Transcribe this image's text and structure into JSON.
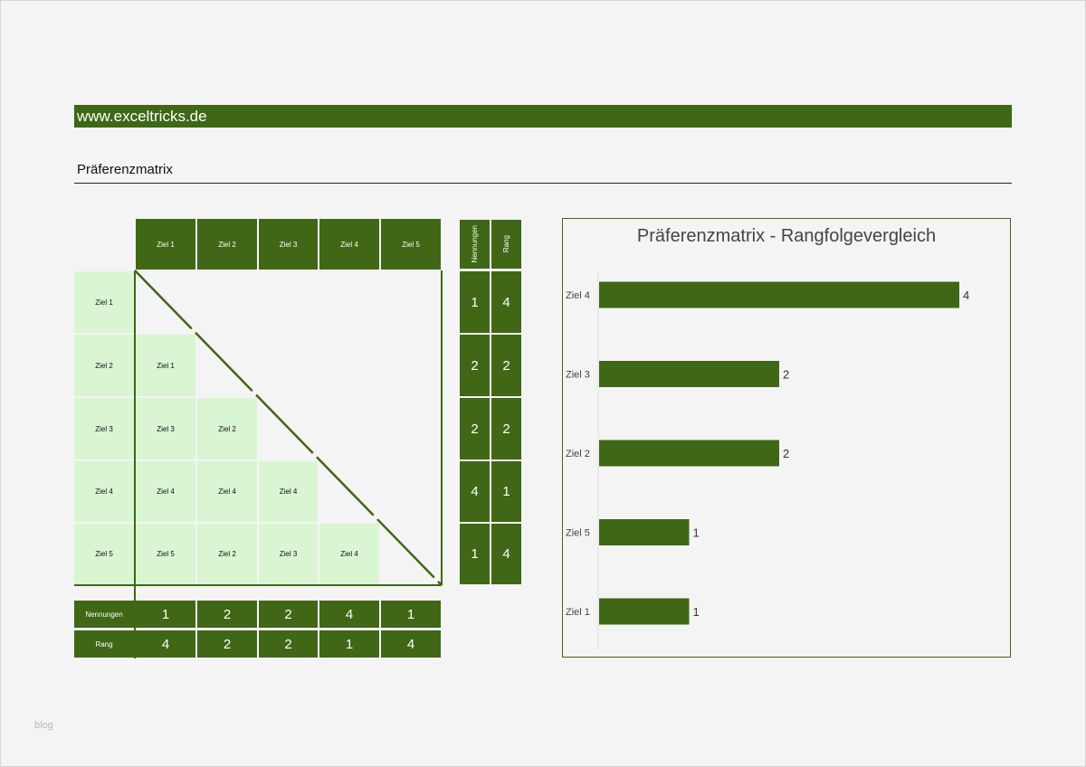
{
  "banner": {
    "text": "www.exceltricks.de"
  },
  "sheet": {
    "title": "Präferenzmatrix"
  },
  "matrix": {
    "col_headers": [
      "Ziel 1",
      "Ziel 2",
      "Ziel 3",
      "Ziel 4",
      "Ziel 5"
    ],
    "row_headers": [
      "Ziel 1",
      "Ziel 2",
      "Ziel 3",
      "Ziel 4",
      "Ziel 5"
    ],
    "cells": [
      [],
      [
        "Ziel 1"
      ],
      [
        "Ziel 3",
        "Ziel 2"
      ],
      [
        "Ziel 4",
        "Ziel 4",
        "Ziel 4"
      ],
      [
        "Ziel 5",
        "Ziel 2",
        "Ziel 3",
        "Ziel 4"
      ]
    ],
    "side_headers": [
      "Nennungen",
      "Rang"
    ],
    "side_values": [
      [
        "1",
        "4"
      ],
      [
        "2",
        "2"
      ],
      [
        "2",
        "2"
      ],
      [
        "4",
        "1"
      ],
      [
        "1",
        "4"
      ]
    ],
    "bottom_rows": [
      {
        "label": "Nennungen",
        "values": [
          "1",
          "2",
          "2",
          "4",
          "1"
        ]
      },
      {
        "label": "Rang",
        "values": [
          "4",
          "2",
          "2",
          "1",
          "4"
        ]
      }
    ]
  },
  "chart_data": {
    "type": "bar",
    "orientation": "horizontal",
    "title": "Präferenzmatrix - Rangfolgevergleich",
    "categories": [
      "Ziel 4",
      "Ziel 3",
      "Ziel 2",
      "Ziel 5",
      "Ziel 1"
    ],
    "values": [
      4,
      2,
      2,
      1,
      1
    ],
    "data_labels": [
      "4",
      "2",
      "2",
      "1",
      "1"
    ],
    "xlim": [
      0,
      4
    ],
    "grid": false,
    "legend": "none",
    "bar_color": "#3f6716"
  },
  "colors": {
    "accent": "#3f6716",
    "light_cell": "#d9f5d2",
    "background": "#f4f4f4"
  },
  "watermark": {
    "text": "blog"
  }
}
